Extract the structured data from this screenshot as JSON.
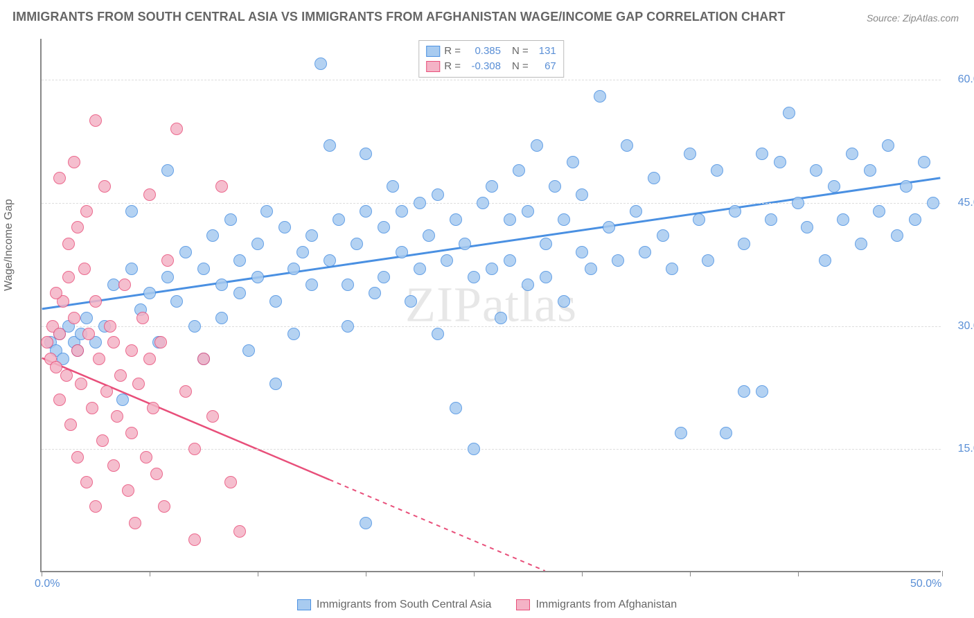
{
  "title": "IMMIGRANTS FROM SOUTH CENTRAL ASIA VS IMMIGRANTS FROM AFGHANISTAN WAGE/INCOME GAP CORRELATION CHART",
  "source": "Source: ZipAtlas.com",
  "watermark": "ZIPatlas",
  "ylabel": "Wage/Income Gap",
  "chart": {
    "type": "scatter",
    "xlim": [
      0,
      50
    ],
    "ylim": [
      0,
      65
    ],
    "x_tick_positions": [
      0,
      6,
      12,
      18,
      24,
      30,
      36,
      42,
      50
    ],
    "x_tick_labels_shown": {
      "0": "0.0%",
      "50": "50.0%"
    },
    "y_ticks": [
      15,
      30,
      45,
      60
    ],
    "y_tick_labels": [
      "15.0%",
      "30.0%",
      "45.0%",
      "60.0%"
    ],
    "grid_color": "#dddddd",
    "axis_color": "#888888",
    "background_color": "#ffffff",
    "marker_radius": 8,
    "marker_stroke_width": 1.5,
    "marker_fill_opacity": 0.25,
    "series": [
      {
        "name": "Immigrants from South Central Asia",
        "stroke": "#4a90e2",
        "fill": "#a8cbf0",
        "corr_R": "0.385",
        "corr_N": "131",
        "trend": {
          "x1": 0,
          "y1": 32,
          "x2": 50,
          "y2": 48,
          "dashed_from_x": null
        },
        "points": [
          [
            0.5,
            28
          ],
          [
            0.8,
            27
          ],
          [
            1,
            29
          ],
          [
            1.2,
            26
          ],
          [
            1.5,
            30
          ],
          [
            1.8,
            28
          ],
          [
            2,
            27
          ],
          [
            2.2,
            29
          ],
          [
            2.5,
            31
          ],
          [
            3,
            28
          ],
          [
            3.5,
            30
          ],
          [
            4,
            35
          ],
          [
            4.5,
            21
          ],
          [
            5,
            37
          ],
          [
            5,
            44
          ],
          [
            5.5,
            32
          ],
          [
            6,
            34
          ],
          [
            6.5,
            28
          ],
          [
            7,
            36
          ],
          [
            7,
            49
          ],
          [
            7.5,
            33
          ],
          [
            8,
            39
          ],
          [
            8.5,
            30
          ],
          [
            9,
            37
          ],
          [
            9,
            26
          ],
          [
            9.5,
            41
          ],
          [
            10,
            35
          ],
          [
            10,
            31
          ],
          [
            10.5,
            43
          ],
          [
            11,
            34
          ],
          [
            11,
            38
          ],
          [
            11.5,
            27
          ],
          [
            12,
            40
          ],
          [
            12,
            36
          ],
          [
            12.5,
            44
          ],
          [
            13,
            33
          ],
          [
            13,
            23
          ],
          [
            13.5,
            42
          ],
          [
            14,
            37
          ],
          [
            14,
            29
          ],
          [
            14.5,
            39
          ],
          [
            15,
            41
          ],
          [
            15,
            35
          ],
          [
            15.5,
            62
          ],
          [
            16,
            52
          ],
          [
            16,
            38
          ],
          [
            16.5,
            43
          ],
          [
            17,
            35
          ],
          [
            17,
            30
          ],
          [
            17.5,
            40
          ],
          [
            18,
            44
          ],
          [
            18,
            51
          ],
          [
            18.5,
            34
          ],
          [
            19,
            42
          ],
          [
            19,
            36
          ],
          [
            19.5,
            47
          ],
          [
            20,
            39
          ],
          [
            20,
            44
          ],
          [
            20.5,
            33
          ],
          [
            21,
            45
          ],
          [
            21,
            37
          ],
          [
            21.5,
            41
          ],
          [
            22,
            29
          ],
          [
            22,
            46
          ],
          [
            22.5,
            38
          ],
          [
            23,
            20
          ],
          [
            23,
            43
          ],
          [
            23.5,
            40
          ],
          [
            24,
            36
          ],
          [
            24,
            15
          ],
          [
            24.5,
            45
          ],
          [
            25,
            37
          ],
          [
            25,
            47
          ],
          [
            25.5,
            31
          ],
          [
            26,
            43
          ],
          [
            26,
            38
          ],
          [
            26.5,
            49
          ],
          [
            27,
            35
          ],
          [
            27,
            44
          ],
          [
            27.5,
            52
          ],
          [
            28,
            40
          ],
          [
            28,
            36
          ],
          [
            28.5,
            47
          ],
          [
            29,
            33
          ],
          [
            29,
            43
          ],
          [
            29.5,
            50
          ],
          [
            30,
            39
          ],
          [
            30,
            46
          ],
          [
            30.5,
            37
          ],
          [
            31,
            58
          ],
          [
            31.5,
            42
          ],
          [
            32,
            38
          ],
          [
            32.5,
            52
          ],
          [
            33,
            44
          ],
          [
            33.5,
            39
          ],
          [
            34,
            48
          ],
          [
            34.5,
            41
          ],
          [
            35,
            37
          ],
          [
            35.5,
            17
          ],
          [
            36,
            51
          ],
          [
            36.5,
            43
          ],
          [
            37,
            38
          ],
          [
            37.5,
            49
          ],
          [
            38,
            17
          ],
          [
            38.5,
            44
          ],
          [
            39,
            40
          ],
          [
            39,
            22
          ],
          [
            40,
            51
          ],
          [
            40,
            22
          ],
          [
            40.5,
            43
          ],
          [
            41,
            50
          ],
          [
            41.5,
            56
          ],
          [
            42,
            45
          ],
          [
            42.5,
            42
          ],
          [
            43,
            49
          ],
          [
            43.5,
            38
          ],
          [
            44,
            47
          ],
          [
            44.5,
            43
          ],
          [
            45,
            51
          ],
          [
            45.5,
            40
          ],
          [
            46,
            49
          ],
          [
            46.5,
            44
          ],
          [
            47,
            52
          ],
          [
            47.5,
            41
          ],
          [
            48,
            47
          ],
          [
            48.5,
            43
          ],
          [
            49,
            50
          ],
          [
            49.5,
            45
          ],
          [
            18,
            6
          ]
        ]
      },
      {
        "name": "Immigrants from Afghanistan",
        "stroke": "#e84f7a",
        "fill": "#f4b3c6",
        "corr_R": "-0.308",
        "corr_N": "67",
        "trend": {
          "x1": 0,
          "y1": 26,
          "x2": 28,
          "y2": 0,
          "dashed_from_x": 16
        },
        "points": [
          [
            0.3,
            28
          ],
          [
            0.5,
            26
          ],
          [
            0.6,
            30
          ],
          [
            0.8,
            25
          ],
          [
            1,
            29
          ],
          [
            1,
            21
          ],
          [
            1.2,
            33
          ],
          [
            1.4,
            24
          ],
          [
            1.5,
            36
          ],
          [
            1.6,
            18
          ],
          [
            1.8,
            31
          ],
          [
            2,
            14
          ],
          [
            2,
            27
          ],
          [
            2.2,
            23
          ],
          [
            2.4,
            37
          ],
          [
            2.5,
            11
          ],
          [
            2.6,
            29
          ],
          [
            2.8,
            20
          ],
          [
            3,
            33
          ],
          [
            3,
            8
          ],
          [
            3.2,
            26
          ],
          [
            3.4,
            16
          ],
          [
            3.5,
            47
          ],
          [
            3.6,
            22
          ],
          [
            3.8,
            30
          ],
          [
            4,
            13
          ],
          [
            4,
            28
          ],
          [
            4.2,
            19
          ],
          [
            4.4,
            24
          ],
          [
            4.6,
            35
          ],
          [
            4.8,
            10
          ],
          [
            5,
            27
          ],
          [
            5,
            17
          ],
          [
            5.2,
            6
          ],
          [
            5.4,
            23
          ],
          [
            5.6,
            31
          ],
          [
            5.8,
            14
          ],
          [
            6,
            26
          ],
          [
            6,
            46
          ],
          [
            6.2,
            20
          ],
          [
            6.4,
            12
          ],
          [
            6.6,
            28
          ],
          [
            6.8,
            8
          ],
          [
            7,
            38
          ],
          [
            7.5,
            54
          ],
          [
            8,
            22
          ],
          [
            8.5,
            15
          ],
          [
            8.5,
            4
          ],
          [
            9,
            26
          ],
          [
            9.5,
            19
          ],
          [
            10,
            47
          ],
          [
            10.5,
            11
          ],
          [
            11,
            5
          ],
          [
            1,
            48
          ],
          [
            2,
            42
          ],
          [
            3,
            55
          ],
          [
            1.5,
            40
          ],
          [
            2.5,
            44
          ],
          [
            0.8,
            34
          ],
          [
            1.8,
            50
          ]
        ]
      }
    ]
  },
  "legend_bottom": [
    {
      "swatch_fill": "#a8cbf0",
      "swatch_stroke": "#4a90e2",
      "label": "Immigrants from South Central Asia"
    },
    {
      "swatch_fill": "#f4b3c6",
      "swatch_stroke": "#e84f7a",
      "label": "Immigrants from Afghanistan"
    }
  ]
}
